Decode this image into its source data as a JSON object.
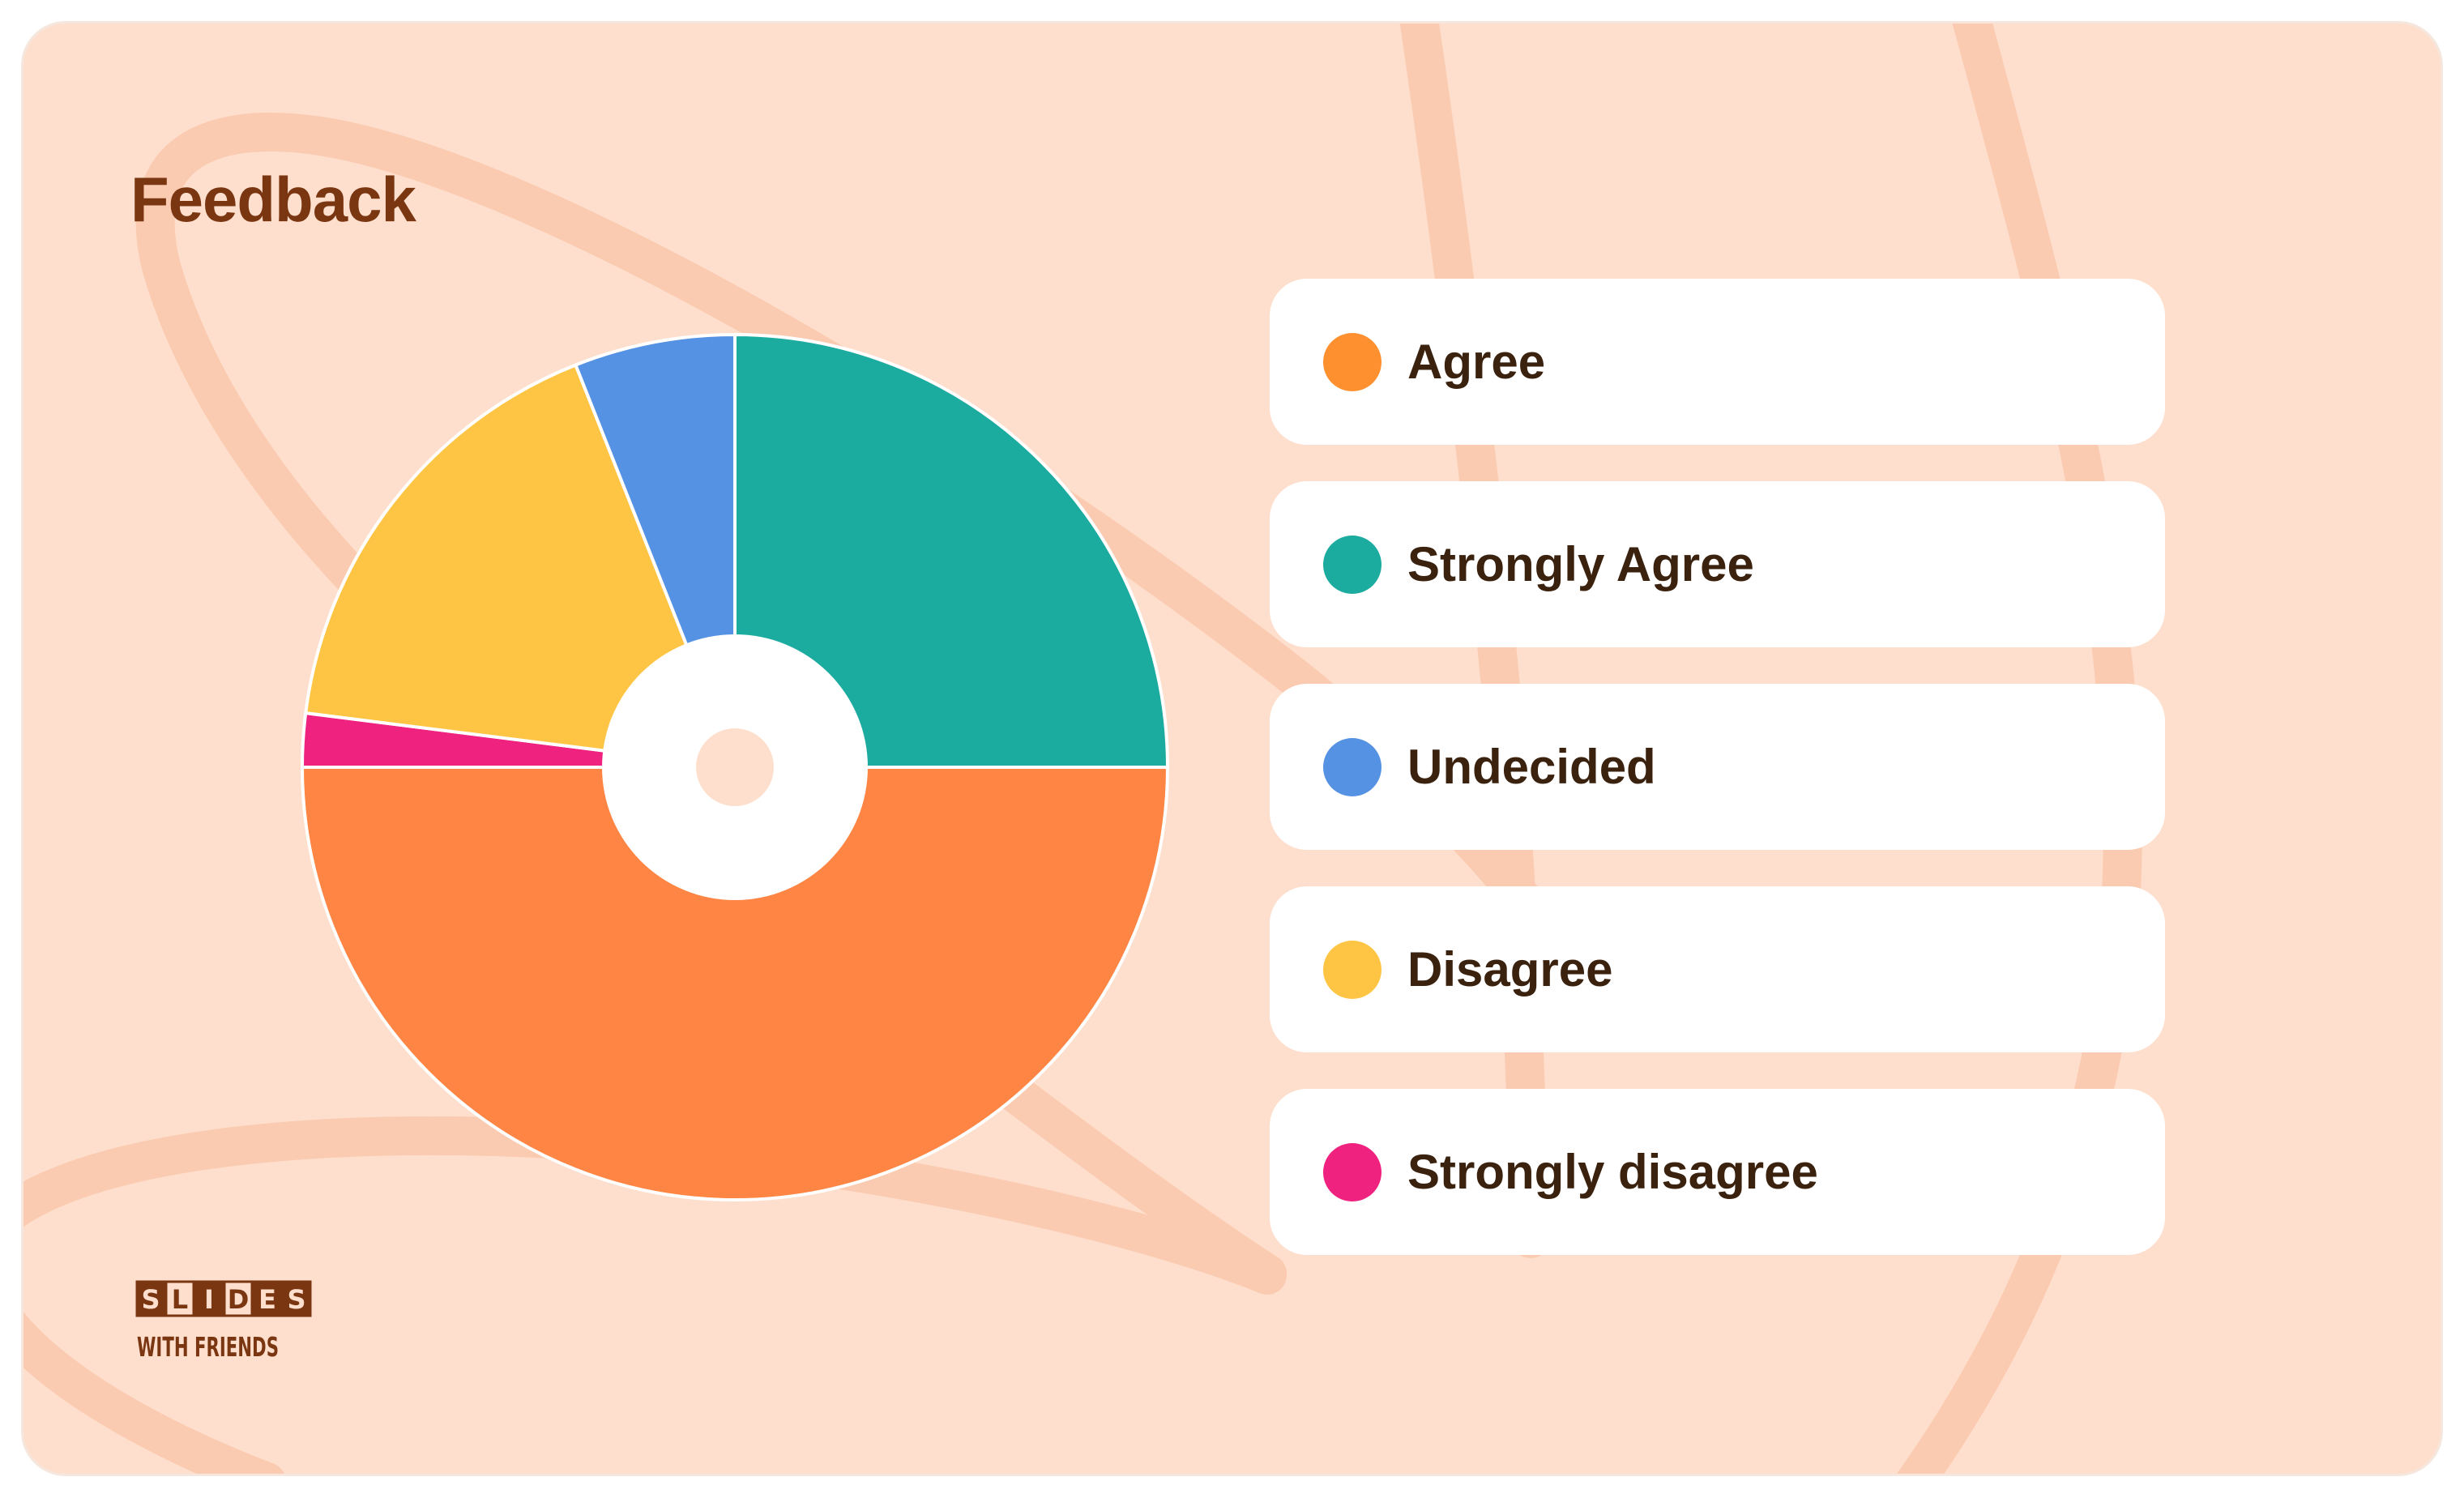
{
  "slide": {
    "title": "Feedback",
    "title_color": "#7a3511",
    "background_color": "#fedfcd",
    "decoration_color": "#fbcbb1"
  },
  "chart_data": {
    "type": "pie",
    "donut": true,
    "start": "top",
    "direction": "clockwise",
    "slices": [
      {
        "label": "Strongly Agree",
        "value": 25,
        "color": "#1bab9f"
      },
      {
        "label": "Agree",
        "value": 50,
        "color": "#fe8543"
      },
      {
        "label": "Strongly disagree",
        "value": 2,
        "color": "#f0227f"
      },
      {
        "label": "Disagree",
        "value": 17,
        "color": "#fec545"
      },
      {
        "label": "Undecided",
        "value": 6,
        "color": "#5592e3"
      }
    ]
  },
  "legend": [
    {
      "label": "Agree",
      "color": "#fe9030"
    },
    {
      "label": "Strongly Agree",
      "color": "#1bab9f"
    },
    {
      "label": "Undecided",
      "color": "#5592e3"
    },
    {
      "label": "Disagree",
      "color": "#fec545"
    },
    {
      "label": "Strongly disagree",
      "color": "#f0227f"
    }
  ],
  "logo": {
    "line1": "SLIDES",
    "line2": "WITH FRIENDS",
    "color": "#7a3511"
  }
}
